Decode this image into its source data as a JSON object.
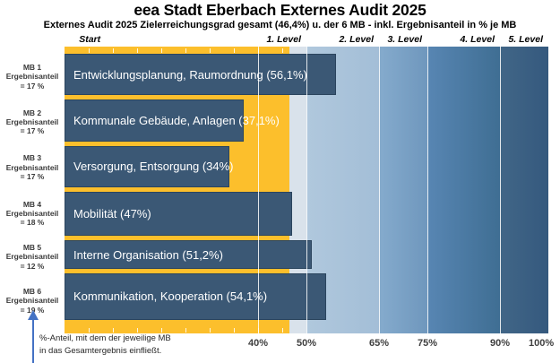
{
  "title": "eea Stadt Eberbach Externes Audit 2025",
  "subtitle": "Externes Audit 2025 Zielerreichungsgrad gesamt (46,4%) u. der 6 MB - inkl. Ergebnisanteil in % je MB",
  "header": {
    "start_label": "Start",
    "levels": [
      "1. Level",
      "2. Level",
      "3. Level",
      "4. Level",
      "5. Level"
    ]
  },
  "footnote": {
    "line1": "%-Anteil, mit dem der jeweilige MB",
    "line2": "in das Gesamtergebnis einfließt."
  },
  "colors": {
    "bar_fill": "#3B5875",
    "bar_border": "#2B455E",
    "result_band_yellow": "#FCBF2C",
    "arrow_blue": "#4472C4",
    "text_dark": "#3a3a3a"
  },
  "chart_data": {
    "type": "bar",
    "orientation": "horizontal",
    "title": "eea Stadt Eberbach Externes Audit 2025",
    "overall_result_pct": 46.4,
    "xlim": [
      0,
      100
    ],
    "x_ticks": [
      {
        "label": "40%",
        "value": 40
      },
      {
        "label": "50%",
        "value": 50
      },
      {
        "label": "65%",
        "value": 65
      },
      {
        "label": "75%",
        "value": 75
      },
      {
        "label": "90%",
        "value": 90
      },
      {
        "label": "100%",
        "value": 100
      }
    ],
    "gridlines": [
      40,
      50,
      65,
      75,
      90
    ],
    "strip_tick_positions": [
      5,
      10,
      15,
      20,
      25,
      30,
      35,
      40,
      45
    ],
    "zones": [
      {
        "name": "start-result-band",
        "from": 0,
        "to": 46.4,
        "color": "#FCBF2C"
      },
      {
        "name": "level-1",
        "from": 46.4,
        "to": 50,
        "color": "#D9E2EB"
      },
      {
        "name": "level-2",
        "from": 50,
        "to": 65,
        "color": "#B0C8DD",
        "color2": "#A3BED7"
      },
      {
        "name": "level-3",
        "from": 65,
        "to": 75,
        "color": "#85ABCD",
        "color2": "#6F97BD"
      },
      {
        "name": "level-4",
        "from": 75,
        "to": 90,
        "color": "#5886B3",
        "color2": "#3F6E93"
      },
      {
        "name": "level-5",
        "from": 90,
        "to": 100,
        "color": "#416687",
        "color2": "#35597E"
      }
    ],
    "bars": [
      {
        "mb_lines": [
          "MB 1",
          "Ergebnisanteil",
          "= 17 %"
        ],
        "weight": 17,
        "label": "Entwicklungsplanung, Raumordnung (56,1%)",
        "value": 56.1
      },
      {
        "mb_lines": [
          "MB 2",
          "Ergebnisanteil",
          "= 17 %"
        ],
        "weight": 17,
        "label": "Kommunale Gebäude, Anlagen (37,1%)",
        "value": 37.1
      },
      {
        "mb_lines": [
          "MB 3",
          "Ergebnisanteil",
          "= 17 %"
        ],
        "weight": 17,
        "label": "Versorgung, Entsorgung (34%)",
        "value": 34
      },
      {
        "mb_lines": [
          "MB 4",
          "Ergebnisanteil",
          "= 18 %"
        ],
        "weight": 18,
        "label": "Mobilität (47%)",
        "value": 47
      },
      {
        "mb_lines": [
          "MB 5",
          "Ergebnisanteil",
          "= 12 %"
        ],
        "weight": 12,
        "label": "Interne Organisation (51,2%)",
        "value": 51.2
      },
      {
        "mb_lines": [
          "MB 6",
          "Ergebnisanteil",
          "= 19 %"
        ],
        "weight": 19,
        "label": "Kommunikation, Kooperation (54,1%)",
        "value": 54.1
      }
    ]
  }
}
